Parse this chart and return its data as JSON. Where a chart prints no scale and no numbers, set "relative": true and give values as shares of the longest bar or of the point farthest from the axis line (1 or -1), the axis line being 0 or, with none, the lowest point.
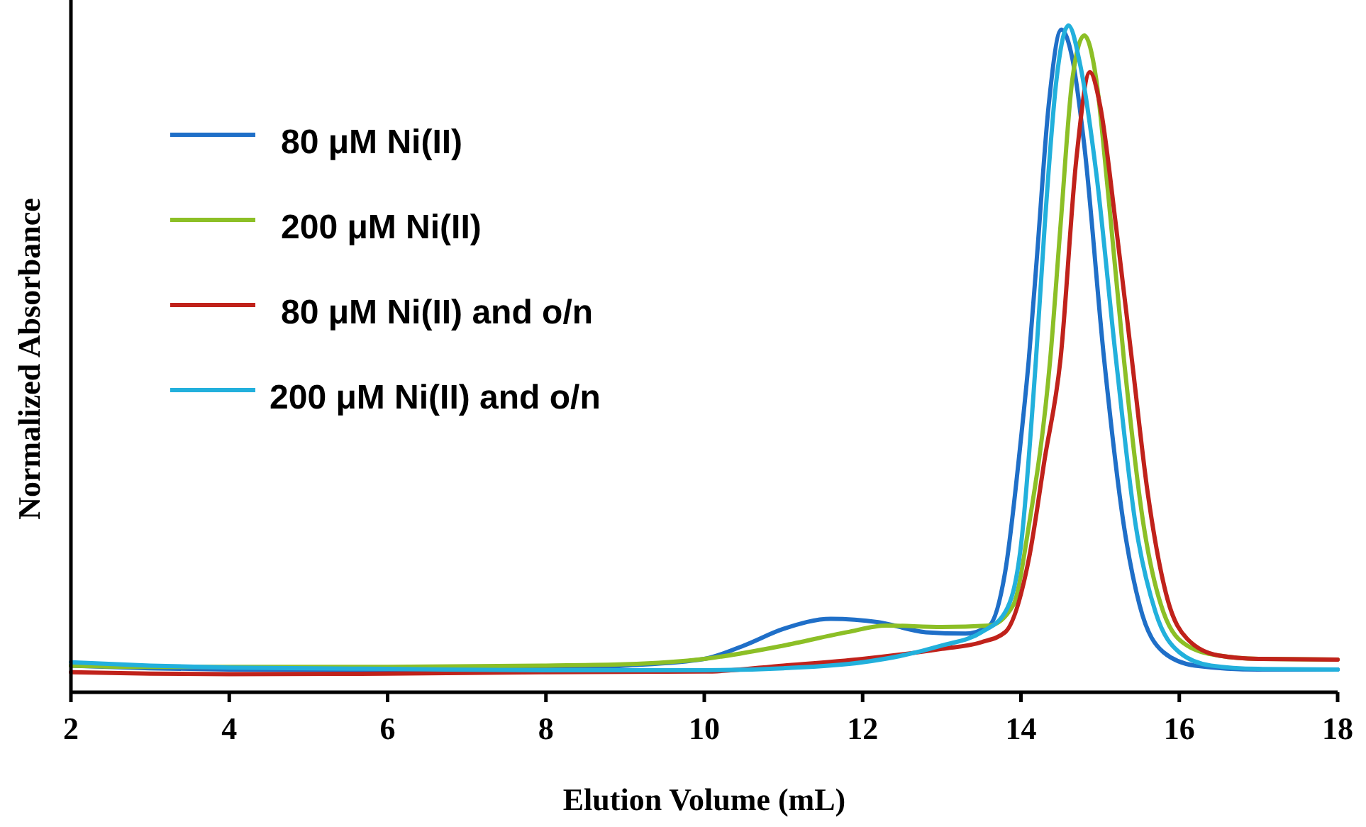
{
  "chart_data": {
    "type": "line",
    "relative": true,
    "xlabel": "Elution Volume (mL)",
    "ylabel": "Normalized Absorbance",
    "xlim": [
      2,
      18
    ],
    "xticks": [
      2,
      4,
      6,
      8,
      10,
      12,
      14,
      16,
      18
    ],
    "legend": "top left",
    "grid": false,
    "marker": "none",
    "line_style": "solid",
    "series": [
      {
        "name": "80 μM Ni(II)",
        "color": "#1f6fc8",
        "x": [
          2,
          3,
          4,
          6,
          8,
          9,
          10,
          10.5,
          11,
          11.6,
          12.2,
          12.8,
          13.3,
          13.6,
          13.8,
          14.0,
          14.1,
          14.2,
          14.35,
          14.51,
          14.65,
          14.8,
          15.05,
          15.3,
          15.5,
          15.8,
          16.2,
          17,
          18
        ],
        "values": [
          0.04,
          0.036,
          0.034,
          0.033,
          0.035,
          0.04,
          0.05,
          0.07,
          0.095,
          0.11,
          0.105,
          0.09,
          0.088,
          0.1,
          0.18,
          0.38,
          0.5,
          0.65,
          0.88,
          0.994,
          0.95,
          0.82,
          0.5,
          0.25,
          0.13,
          0.06,
          0.04,
          0.034,
          0.034
        ]
      },
      {
        "name": "200 μM Ni(II)",
        "color": "#8cbf26",
        "x": [
          2,
          3,
          4,
          6,
          8,
          9,
          10,
          11,
          11.8,
          12.3,
          13,
          13.6,
          13.9,
          14.1,
          14.37,
          14.5,
          14.65,
          14.8,
          14.95,
          15.1,
          15.3,
          15.55,
          15.8,
          16.1,
          16.5,
          17,
          18
        ],
        "values": [
          0.04,
          0.038,
          0.038,
          0.038,
          0.04,
          0.042,
          0.05,
          0.07,
          0.09,
          0.1,
          0.098,
          0.1,
          0.13,
          0.25,
          0.5,
          0.7,
          0.92,
          0.985,
          0.92,
          0.75,
          0.5,
          0.25,
          0.12,
          0.07,
          0.055,
          0.05,
          0.049
        ]
      },
      {
        "name": "80 μM Ni(II) and o/n",
        "color": "#c0221b",
        "x": [
          2,
          3,
          4,
          6,
          8,
          10,
          11,
          12,
          13,
          13.5,
          13.8,
          14.1,
          14.3,
          14.5,
          14.7,
          14.87,
          15.0,
          15.2,
          15.4,
          15.6,
          15.85,
          16.1,
          16.5,
          17,
          18
        ],
        "values": [
          0.03,
          0.028,
          0.027,
          0.028,
          0.03,
          0.031,
          0.04,
          0.05,
          0.065,
          0.075,
          0.09,
          0.2,
          0.35,
          0.5,
          0.8,
          0.93,
          0.88,
          0.7,
          0.5,
          0.3,
          0.14,
          0.08,
          0.055,
          0.05,
          0.049
        ]
      },
      {
        "name": "200 μM Ni(II) and o/n",
        "color": "#22b0dc",
        "x": [
          2,
          3,
          4,
          6,
          8,
          10,
          11,
          12,
          12.5,
          13,
          13.5,
          13.8,
          14.0,
          14.19,
          14.3,
          14.45,
          14.6,
          14.75,
          14.95,
          15.2,
          15.45,
          15.7,
          16,
          16.4,
          17,
          18
        ],
        "values": [
          0.045,
          0.04,
          0.037,
          0.035,
          0.033,
          0.033,
          0.036,
          0.045,
          0.055,
          0.07,
          0.09,
          0.12,
          0.22,
          0.5,
          0.7,
          0.92,
          1.0,
          0.94,
          0.78,
          0.5,
          0.25,
          0.12,
          0.06,
          0.04,
          0.035,
          0.034
        ]
      }
    ]
  }
}
